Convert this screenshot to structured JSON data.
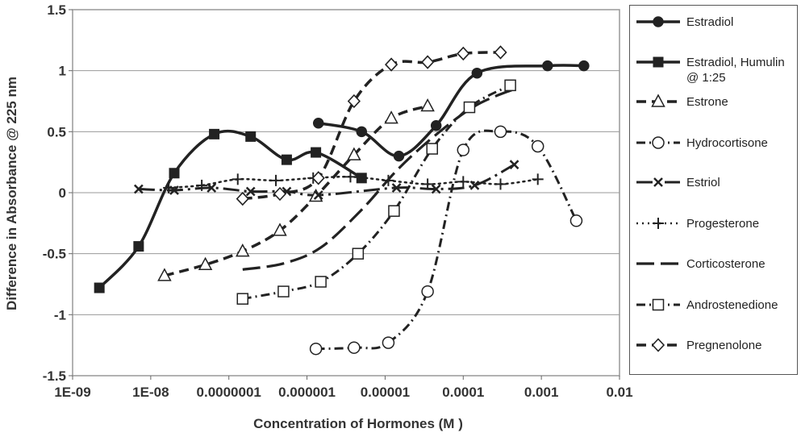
{
  "chart_data": {
    "type": "line",
    "xscale": "log",
    "xlabel": "Concentration of Hormones (M )",
    "ylabel": "Difference in Absorbance @ 225 nm",
    "ylim": [
      -1.5,
      1.5
    ],
    "xlim": [
      1e-09,
      0.01
    ],
    "grid": "horizontal",
    "legend_position": "right",
    "x_tick_labels": [
      "1E-09",
      "1E-08",
      "0.0000001",
      "0.000001",
      "0.00001",
      "0.0001",
      "0.001",
      "0.01"
    ],
    "y_tick_labels": [
      "-1.5",
      "-1",
      "-0.5",
      "0",
      "0.5",
      "1",
      "1.5"
    ],
    "series": [
      {
        "name": "Estradiol",
        "marker": "circle-filled",
        "dash": "solid",
        "points": [
          [
            1.4e-06,
            0.57
          ],
          [
            5e-06,
            0.5
          ],
          [
            1.5e-05,
            0.3
          ],
          [
            4.5e-05,
            0.55
          ],
          [
            0.00015,
            0.98
          ],
          [
            0.0012,
            1.04
          ],
          [
            0.0035,
            1.04
          ]
        ]
      },
      {
        "name": "Estradiol, Humulin @ 1:25",
        "marker": "square-filled",
        "dash": "solid",
        "points": [
          [
            2.2e-09,
            -0.78
          ],
          [
            7e-09,
            -0.44
          ],
          [
            2e-08,
            0.16
          ],
          [
            6.5e-08,
            0.48
          ],
          [
            1.9e-07,
            0.46
          ],
          [
            5.5e-07,
            0.27
          ],
          [
            1.3e-06,
            0.33
          ],
          [
            5e-06,
            0.12
          ]
        ]
      },
      {
        "name": "Estrone",
        "marker": "triangle-open",
        "dash": "dashed",
        "points": [
          [
            1.5e-08,
            -0.68
          ],
          [
            5e-08,
            -0.59
          ],
          [
            1.5e-07,
            -0.48
          ],
          [
            4.5e-07,
            -0.31
          ],
          [
            1.3e-06,
            -0.03
          ],
          [
            4e-06,
            0.31
          ],
          [
            1.2e-05,
            0.61
          ],
          [
            3.5e-05,
            0.71
          ]
        ]
      },
      {
        "name": "Hydrocortisone",
        "marker": "circle-open",
        "dash": "dash-dot",
        "points": [
          [
            1.3e-06,
            -1.28
          ],
          [
            4e-06,
            -1.27
          ],
          [
            1.1e-05,
            -1.23
          ],
          [
            3.5e-05,
            -0.81
          ],
          [
            0.0001,
            0.35
          ],
          [
            0.0003,
            0.5
          ],
          [
            0.0009,
            0.38
          ],
          [
            0.0028,
            -0.23
          ]
        ]
      },
      {
        "name": "Estriol",
        "marker": "x",
        "dash": "long-dash-dot",
        "points": [
          [
            7e-09,
            0.03
          ],
          [
            2e-08,
            0.02
          ],
          [
            6e-08,
            0.04
          ],
          [
            1.9e-07,
            0.01
          ],
          [
            5.5e-07,
            0.01
          ],
          [
            1.4e-06,
            -0.02
          ],
          [
            1.4e-05,
            0.04
          ],
          [
            4.5e-05,
            0.03
          ],
          [
            0.00014,
            0.06
          ],
          [
            0.00045,
            0.23
          ]
        ]
      },
      {
        "name": "Progesterone",
        "marker": "plus",
        "dash": "dotted",
        "points": [
          [
            1.7e-08,
            0.04
          ],
          [
            4.5e-08,
            0.06
          ],
          [
            1.3e-07,
            0.11
          ],
          [
            4e-07,
            0.1
          ],
          [
            1.2e-06,
            0.12
          ],
          [
            3.6e-06,
            0.13
          ],
          [
            1.1e-05,
            0.1
          ],
          [
            3.5e-05,
            0.07
          ],
          [
            0.0001,
            0.09
          ],
          [
            0.0003,
            0.07
          ],
          [
            0.0009,
            0.11
          ]
        ]
      },
      {
        "name": "Corticosterone",
        "marker": "none",
        "dash": "long-dash",
        "points": [
          [
            1.5e-07,
            -0.63
          ],
          [
            5e-07,
            -0.58
          ],
          [
            1.5e-06,
            -0.45
          ],
          [
            5e-06,
            -0.14
          ],
          [
            1.5e-05,
            0.2
          ],
          [
            5e-05,
            0.5
          ],
          [
            0.00015,
            0.72
          ],
          [
            0.00045,
            0.85
          ]
        ]
      },
      {
        "name": "Androstenedione",
        "marker": "square-open",
        "dash": "dash-dot",
        "points": [
          [
            1.5e-07,
            -0.87
          ],
          [
            5e-07,
            -0.81
          ],
          [
            1.5e-06,
            -0.73
          ],
          [
            4.5e-06,
            -0.5
          ],
          [
            1.3e-05,
            -0.15
          ],
          [
            4e-05,
            0.36
          ],
          [
            0.00012,
            0.7
          ],
          [
            0.0004,
            0.88
          ]
        ]
      },
      {
        "name": "Pregnenolone",
        "marker": "diamond-open",
        "dash": "dashed",
        "points": [
          [
            1.5e-07,
            -0.05
          ],
          [
            4.5e-07,
            -0.01
          ],
          [
            1.4e-06,
            0.12
          ],
          [
            4e-06,
            0.75
          ],
          [
            1.2e-05,
            1.05
          ],
          [
            3.5e-05,
            1.07
          ],
          [
            0.0001,
            1.14
          ],
          [
            0.0003,
            1.15
          ]
        ]
      }
    ]
  }
}
